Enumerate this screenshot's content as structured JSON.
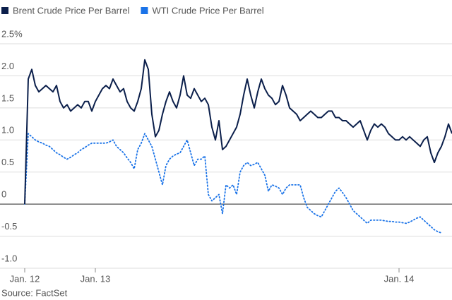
{
  "chart_data": {
    "type": "line",
    "legend": "top-left",
    "source": "Source: FactSet",
    "categories": [
      "Jan. 12",
      null,
      null,
      null,
      null,
      null,
      null,
      null,
      null,
      null,
      null,
      null,
      null,
      null,
      null,
      null,
      null,
      null,
      null,
      null,
      "Jan. 13",
      null,
      null,
      null,
      null,
      null,
      null,
      null,
      null,
      null,
      null,
      null,
      null,
      null,
      null,
      null,
      null,
      null,
      null,
      null,
      null,
      null,
      null,
      null,
      null,
      null,
      null,
      null,
      null,
      null,
      null,
      null,
      null,
      null,
      null,
      null,
      null,
      null,
      null,
      null,
      null,
      null,
      null,
      null,
      null,
      null,
      null,
      null,
      null,
      null,
      null,
      null,
      null,
      null,
      null,
      null,
      null,
      null,
      null,
      null,
      null,
      null,
      null,
      null,
      null,
      null,
      null,
      null,
      null,
      null,
      null,
      null,
      null,
      null,
      null,
      null,
      null,
      null,
      null,
      null,
      null,
      null,
      null,
      null,
      null,
      null,
      "Jan. 14",
      null,
      null,
      null,
      null,
      null,
      null,
      null,
      null,
      null,
      null,
      null,
      null,
      null,
      null,
      null
    ],
    "series": [
      {
        "name": "Brent Crude Price Per Barrel",
        "color": "#0b1f4b",
        "dash": "solid",
        "values": [
          0,
          1.95,
          2.1,
          1.85,
          1.75,
          1.8,
          1.85,
          1.8,
          1.75,
          1.85,
          1.6,
          1.5,
          1.55,
          1.45,
          1.5,
          1.55,
          1.5,
          1.6,
          1.6,
          1.45,
          1.6,
          1.7,
          1.8,
          1.85,
          1.8,
          1.95,
          1.85,
          1.75,
          1.8,
          1.6,
          1.5,
          1.45,
          1.6,
          1.8,
          2.25,
          2.1,
          1.4,
          1.05,
          1.15,
          1.4,
          1.6,
          1.75,
          1.6,
          1.5,
          1.7,
          2.0,
          1.7,
          1.65,
          1.8,
          1.7,
          1.6,
          1.65,
          1.55,
          1.2,
          1.0,
          1.3,
          0.85,
          0.9,
          1.0,
          1.1,
          1.2,
          1.4,
          1.7,
          1.95,
          1.7,
          1.5,
          1.75,
          1.95,
          1.8,
          1.7,
          1.65,
          1.55,
          1.6,
          1.85,
          1.7,
          1.5,
          1.45,
          1.4,
          1.3,
          1.35,
          1.4,
          1.45,
          1.4,
          1.35,
          1.35,
          1.4,
          1.45,
          1.45,
          1.35,
          1.35,
          1.3,
          1.3,
          1.25,
          1.2,
          1.25,
          1.3,
          1.15,
          1.0,
          1.15,
          1.25,
          1.2,
          1.25,
          1.2,
          1.1,
          1.05,
          1.0,
          1.0,
          1.05,
          1.0,
          1.05,
          1.0,
          0.95,
          0.9,
          1.0,
          1.05,
          0.8,
          0.65,
          0.8,
          0.9,
          1.05,
          1.25,
          1.1
        ]
      },
      {
        "name": "WTI Crude Price Per Barrel",
        "color": "#1a73e8",
        "dash": "dotted",
        "values": [
          0,
          1.1,
          1.05,
          1.0,
          0.97,
          0.95,
          0.92,
          0.9,
          0.85,
          0.8,
          0.77,
          0.73,
          0.7,
          0.73,
          0.77,
          0.8,
          0.85,
          0.88,
          0.92,
          0.95,
          0.95,
          0.95,
          0.95,
          0.95,
          0.97,
          1.0,
          0.9,
          0.85,
          0.8,
          0.72,
          0.65,
          0.55,
          0.85,
          0.95,
          1.1,
          1.0,
          0.9,
          0.7,
          0.5,
          0.3,
          0.6,
          0.7,
          0.75,
          0.78,
          0.8,
          0.9,
          1.0,
          0.8,
          0.6,
          0.7,
          0.7,
          0.75,
          0.15,
          0.05,
          0.1,
          0.15,
          -0.15,
          0.3,
          0.25,
          0.3,
          0.15,
          0.5,
          0.6,
          0.65,
          0.6,
          0.62,
          0.65,
          0.55,
          0.45,
          0.2,
          0.3,
          0.28,
          0.25,
          0.15,
          0.25,
          0.3,
          0.3,
          0.3,
          0.3,
          0.1,
          -0.05,
          -0.1,
          -0.15,
          -0.18,
          -0.2,
          -0.1,
          0.0,
          0.1,
          0.2,
          0.25,
          0.18,
          0.1,
          0.0,
          -0.1,
          -0.15,
          -0.2,
          -0.25,
          -0.3,
          -0.25,
          -0.25,
          -0.25,
          -0.25,
          -0.26,
          -0.27,
          -0.27,
          -0.28,
          -0.28,
          -0.29,
          -0.3,
          -0.28,
          -0.25,
          -0.22,
          -0.2,
          -0.25,
          -0.3,
          -0.35,
          -0.4,
          -0.43,
          -0.45,
          null,
          null,
          null
        ]
      }
    ],
    "ylim": [
      -1.0,
      2.5
    ],
    "yticks": [
      {
        "value": 2.5,
        "label": "2.5%"
      },
      {
        "value": 2.0,
        "label": "2.0"
      },
      {
        "value": 1.5,
        "label": "1.5"
      },
      {
        "value": 1.0,
        "label": "1.0"
      },
      {
        "value": 0.5,
        "label": "0.5"
      },
      0,
      -0.5,
      {
        "value": -1.0,
        "label": "-1.0"
      }
    ],
    "grid": true
  }
}
